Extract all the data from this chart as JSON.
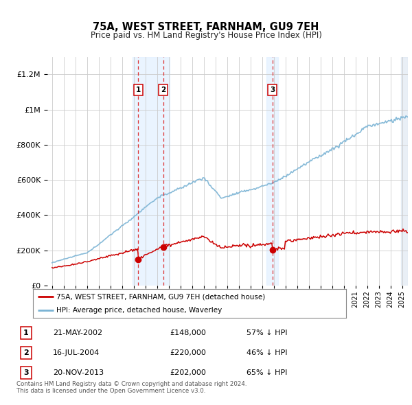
{
  "title": "75A, WEST STREET, FARNHAM, GU9 7EH",
  "subtitle": "Price paid vs. HM Land Registry's House Price Index (HPI)",
  "legend_property": "75A, WEST STREET, FARNHAM, GU9 7EH (detached house)",
  "legend_hpi": "HPI: Average price, detached house, Waverley",
  "footer_line1": "Contains HM Land Registry data © Crown copyright and database right 2024.",
  "footer_line2": "This data is licensed under the Open Government Licence v3.0.",
  "transactions": [
    {
      "num": 1,
      "date": "21-MAY-2002",
      "price": 148000,
      "hpi_pct": "57% ↓ HPI",
      "year": 2002.38
    },
    {
      "num": 2,
      "date": "16-JUL-2004",
      "price": 220000,
      "hpi_pct": "46% ↓ HPI",
      "year": 2004.54
    },
    {
      "num": 3,
      "date": "20-NOV-2013",
      "price": 202000,
      "hpi_pct": "65% ↓ HPI",
      "year": 2013.88
    }
  ],
  "hpi_color": "#7ab3d4",
  "property_color": "#cc0000",
  "vline_color": "#dd3333",
  "highlight_color": "#ddeeff",
  "ylim": [
    0,
    1300000
  ],
  "yticks": [
    0,
    200000,
    400000,
    600000,
    800000,
    1000000,
    1200000
  ],
  "xlim_start": 1994.6,
  "xlim_end": 2025.5,
  "background_color": "#ffffff",
  "grid_color": "#cccccc"
}
